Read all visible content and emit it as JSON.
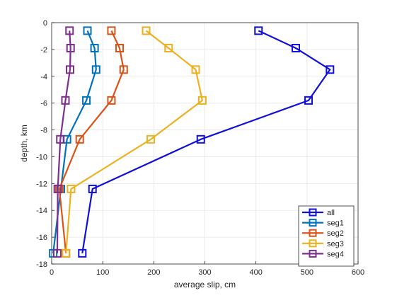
{
  "chart_data": {
    "type": "line",
    "title": "",
    "xlabel": "average slip, cm",
    "ylabel": "depth, km",
    "xlim": [
      0,
      600
    ],
    "ylim": [
      -18,
      0
    ],
    "xticks": [
      0,
      100,
      200,
      300,
      400,
      500,
      600
    ],
    "yticks": [
      0,
      -2,
      -4,
      -6,
      -8,
      -10,
      -12,
      -14,
      -16,
      -18
    ],
    "grid": true,
    "legend_position": "bottom-right",
    "marker": "square",
    "series": [
      {
        "name": "all",
        "color": "#1010d8",
        "x": [
          405,
          478,
          545,
          503,
          292,
          80,
          60
        ],
        "y": [
          -0.6,
          -1.9,
          -3.5,
          -5.8,
          -8.7,
          -12.4,
          -17.2
        ]
      },
      {
        "name": "seg1",
        "color": "#0072bd",
        "x": [
          70,
          84,
          87,
          68,
          30,
          18,
          3
        ],
        "y": [
          -0.6,
          -1.9,
          -3.5,
          -5.8,
          -8.7,
          -12.4,
          -17.2
        ]
      },
      {
        "name": "seg2",
        "color": "#d95319",
        "x": [
          117,
          133,
          141,
          117,
          55,
          15,
          28
        ],
        "y": [
          -0.6,
          -1.9,
          -3.5,
          -5.8,
          -8.7,
          -12.4,
          -17.2
        ]
      },
      {
        "name": "seg3",
        "color": "#edb120",
        "x": [
          185,
          229,
          282,
          295,
          194,
          38,
          28
        ],
        "y": [
          -0.6,
          -1.9,
          -3.5,
          -5.8,
          -8.7,
          -12.4,
          -17.2
        ]
      },
      {
        "name": "seg4",
        "color": "#7e2f8e",
        "x": [
          35,
          37,
          36,
          27,
          17,
          12,
          11
        ],
        "y": [
          -0.6,
          -1.9,
          -3.5,
          -5.8,
          -8.7,
          -12.4,
          -17.2
        ]
      }
    ]
  }
}
